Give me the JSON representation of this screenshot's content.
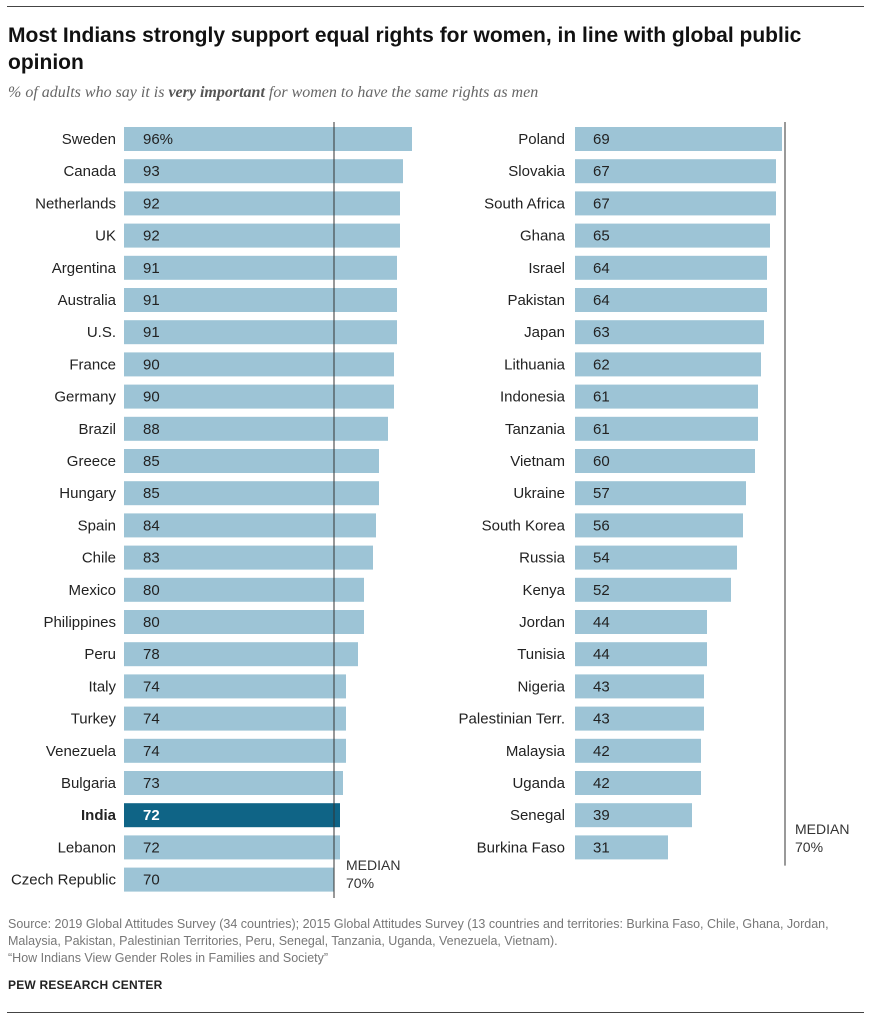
{
  "title": "Most Indians strongly support equal rights for women, in line with global public opinion",
  "subtitle": {
    "prefix": "% of adults who say it is ",
    "emphasis": "very important",
    "suffix": " for women to have the same rights as men"
  },
  "source": {
    "line1": "Source: 2019 Global Attitudes Survey (34 countries); 2015 Global Attitudes Survey (13 countries and territories: Burkina Faso, Chile, Ghana, Jordan, Malaysia, Pakistan, Palestinian Territories, Peru, Senegal, Tanzania, Uganda, Venezuela, Vietnam).",
    "line2": "“How Indians View Gender Roles in Families and Society”"
  },
  "brand": "PEW RESEARCH CENTER",
  "colors": {
    "bar": "#9dc4d6",
    "highlight": "#0f6486",
    "median_line": "#333333",
    "label": "#222222",
    "value_text": "#222222",
    "highlight_text": "#ffffff"
  },
  "chart_data": {
    "type": "bar",
    "orientation": "horizontal",
    "median": 70,
    "median_label": "MEDIAN",
    "median_value_label": "70%",
    "xlim": [
      0,
      100
    ],
    "highlight": "India",
    "first_value_suffix": "%",
    "columns": [
      {
        "categories": [
          "Sweden",
          "Canada",
          "Netherlands",
          "UK",
          "Argentina",
          "Australia",
          "U.S.",
          "France",
          "Germany",
          "Brazil",
          "Greece",
          "Hungary",
          "Spain",
          "Chile",
          "Mexico",
          "Philippines",
          "Peru",
          "Italy",
          "Turkey",
          "Venezuela",
          "Bulgaria",
          "India",
          "Lebanon",
          "Czech Republic"
        ],
        "values": [
          96,
          93,
          92,
          92,
          91,
          91,
          91,
          90,
          90,
          88,
          85,
          85,
          84,
          83,
          80,
          80,
          78,
          74,
          74,
          74,
          73,
          72,
          72,
          70
        ]
      },
      {
        "categories": [
          "Poland",
          "Slovakia",
          "South Africa",
          "Ghana",
          "Israel",
          "Pakistan",
          "Japan",
          "Lithuania",
          "Indonesia",
          "Tanzania",
          "Vietnam",
          "Ukraine",
          "South Korea",
          "Russia",
          "Kenya",
          "Jordan",
          "Tunisia",
          "Nigeria",
          "Palestinian Terr.",
          "Malaysia",
          "Uganda",
          "Senegal",
          "Burkina Faso"
        ],
        "values": [
          69,
          67,
          67,
          65,
          64,
          64,
          63,
          62,
          61,
          61,
          60,
          57,
          56,
          54,
          52,
          44,
          44,
          43,
          43,
          42,
          42,
          39,
          31
        ]
      }
    ]
  }
}
